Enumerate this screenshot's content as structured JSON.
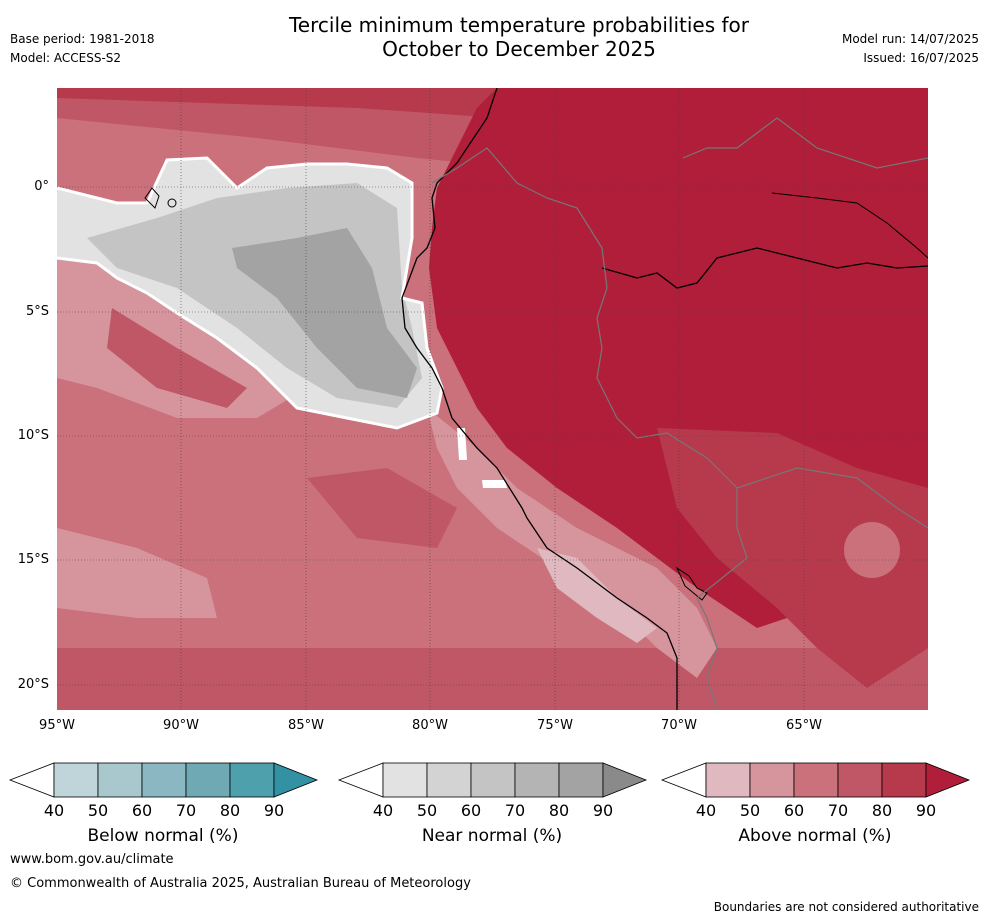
{
  "header": {
    "title_line1": "Tercile minimum temperature probabilities for",
    "title_line2": "October to December 2025",
    "base_period": "Base period: 1981-2018",
    "model": "Model: ACCESS-S2",
    "model_run": "Model run: 14/07/2025",
    "issued": "Issued: 16/07/2025"
  },
  "map": {
    "lat_labels": [
      "0°",
      "5°S",
      "10°S",
      "15°S",
      "20°S"
    ],
    "lon_labels": [
      "95°W",
      "90°W",
      "85°W",
      "80°W",
      "75°W",
      "70°W",
      "65°W"
    ]
  },
  "colorbars": [
    {
      "title": "Below normal (%)",
      "ticks": [
        "40",
        "50",
        "60",
        "70",
        "80",
        "90"
      ],
      "colors": [
        "#bfd5da",
        "#a8c8ce",
        "#8ab7c1",
        "#6fa9b4",
        "#4fa0ad",
        "#3292a3"
      ]
    },
    {
      "title": "Near normal (%)",
      "ticks": [
        "40",
        "50",
        "60",
        "70",
        "80",
        "90"
      ],
      "colors": [
        "#e2e2e2",
        "#d3d3d3",
        "#c4c4c4",
        "#b4b4b4",
        "#a3a3a3",
        "#8a8a8a"
      ]
    },
    {
      "title": "Above normal (%)",
      "ticks": [
        "40",
        "50",
        "60",
        "70",
        "80",
        "90"
      ],
      "colors": [
        "#dfb9bf",
        "#d6949c",
        "#ca717c",
        "#c05766",
        "#b6394c",
        "#b01e3a"
      ]
    }
  ],
  "footer": {
    "url": "www.bom.gov.au/climate",
    "copyright": "© Commonwealth of Australia 2025, Australian Bureau of Meteorology",
    "disclaimer": "Boundaries are not considered authoritative"
  }
}
